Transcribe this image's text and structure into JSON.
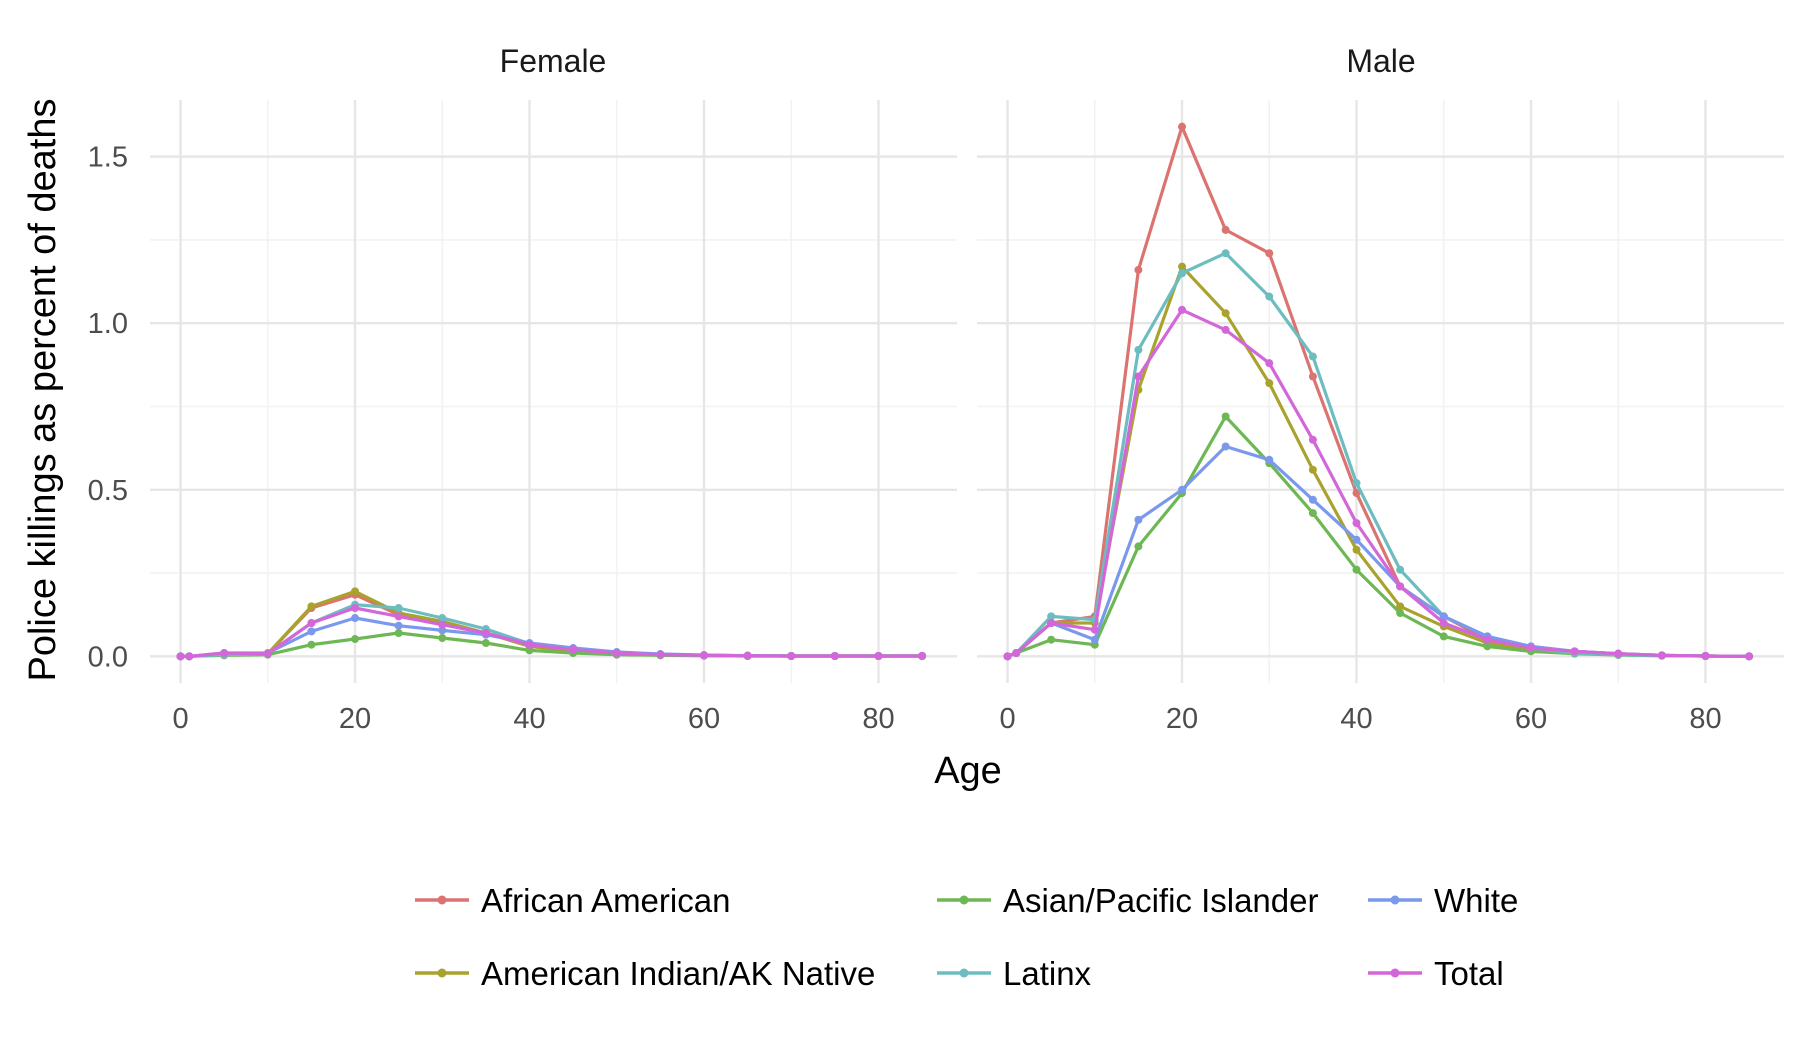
{
  "chart_data": {
    "type": "line",
    "xlabel": "Age",
    "ylabel": "Police killings as percent of deaths",
    "xlim": [
      -3.5,
      89
    ],
    "ylim": [
      -0.08,
      1.67
    ],
    "x_ticks": [
      0,
      20,
      40,
      60,
      80
    ],
    "y_ticks": [
      0.0,
      0.5,
      1.0,
      1.5
    ],
    "y_tick_labels": [
      "0.0",
      "0.5",
      "1.0",
      "1.5"
    ],
    "x": [
      0,
      1,
      5,
      10,
      15,
      20,
      25,
      30,
      35,
      40,
      45,
      50,
      55,
      60,
      65,
      70,
      75,
      80,
      85
    ],
    "grid": true,
    "legend_position": "bottom",
    "panels": [
      {
        "title": "Female",
        "series": [
          {
            "name": "African American",
            "color": "#DB7370",
            "values": [
              0.0,
              0.0,
              0.005,
              0.008,
              0.145,
              0.185,
              0.125,
              0.1,
              0.07,
              0.035,
              0.02,
              0.01,
              0.005,
              0.003,
              0.002,
              0.001,
              0.001,
              0.001,
              0.001
            ]
          },
          {
            "name": "American Indian/AK Native",
            "color": "#A9A32E",
            "values": [
              0.0,
              0.0,
              0.005,
              0.008,
              0.15,
              0.195,
              0.13,
              0.105,
              0.07,
              0.03,
              0.015,
              0.008,
              0.004,
              0.002,
              0.001,
              0.001,
              0.001,
              0.001,
              0.001
            ]
          },
          {
            "name": "Asian/Pacific Islander",
            "color": "#6DB754",
            "values": [
              0.0,
              0.0,
              0.003,
              0.005,
              0.035,
              0.052,
              0.07,
              0.055,
              0.04,
              0.018,
              0.01,
              0.005,
              0.003,
              0.002,
              0.001,
              0.001,
              0.001,
              0.001,
              0.001
            ]
          },
          {
            "name": "Latinx",
            "color": "#6DBDC0",
            "values": [
              0.0,
              0.0,
              0.005,
              0.008,
              0.1,
              0.155,
              0.145,
              0.115,
              0.082,
              0.038,
              0.02,
              0.01,
              0.005,
              0.003,
              0.002,
              0.001,
              0.001,
              0.001,
              0.001
            ]
          },
          {
            "name": "White",
            "color": "#7A99EC",
            "values": [
              0.0,
              0.0,
              0.01,
              0.01,
              0.075,
              0.115,
              0.092,
              0.078,
              0.065,
              0.04,
              0.025,
              0.013,
              0.007,
              0.004,
              0.002,
              0.001,
              0.001,
              0.001,
              0.001
            ]
          },
          {
            "name": "Total",
            "color": "#D367D9",
            "values": [
              0.0,
              0.0,
              0.01,
              0.008,
              0.1,
              0.145,
              0.12,
              0.095,
              0.07,
              0.035,
              0.02,
              0.01,
              0.005,
              0.003,
              0.002,
              0.001,
              0.001,
              0.001,
              0.001
            ]
          }
        ]
      },
      {
        "title": "Male",
        "series": [
          {
            "name": "African American",
            "color": "#DB7370",
            "values": [
              0.0,
              0.01,
              0.1,
              0.12,
              1.16,
              1.59,
              1.28,
              1.21,
              0.84,
              0.49,
              0.21,
              0.12,
              0.05,
              0.025,
              0.015,
              0.008,
              0.003,
              0.001,
              0.0
            ]
          },
          {
            "name": "American Indian/AK Native",
            "color": "#A9A32E",
            "values": [
              0.0,
              0.01,
              0.1,
              0.1,
              0.8,
              1.17,
              1.03,
              0.82,
              0.56,
              0.32,
              0.15,
              0.09,
              0.04,
              0.02,
              0.01,
              0.005,
              0.002,
              0.001,
              0.0
            ]
          },
          {
            "name": "Asian/Pacific Islander",
            "color": "#6DB754",
            "values": [
              0.0,
              0.01,
              0.05,
              0.035,
              0.33,
              0.49,
              0.72,
              0.58,
              0.43,
              0.26,
              0.13,
              0.06,
              0.03,
              0.015,
              0.008,
              0.004,
              0.002,
              0.001,
              0.0
            ]
          },
          {
            "name": "Latinx",
            "color": "#6DBDC0",
            "values": [
              0.0,
              0.01,
              0.12,
              0.11,
              0.92,
              1.15,
              1.21,
              1.08,
              0.9,
              0.52,
              0.26,
              0.12,
              0.06,
              0.025,
              0.01,
              0.005,
              0.002,
              0.001,
              0.0
            ]
          },
          {
            "name": "White",
            "color": "#7A99EC",
            "values": [
              0.0,
              0.01,
              0.1,
              0.05,
              0.41,
              0.5,
              0.63,
              0.59,
              0.47,
              0.35,
              0.21,
              0.12,
              0.06,
              0.03,
              0.015,
              0.008,
              0.003,
              0.001,
              0.0
            ]
          },
          {
            "name": "Total",
            "color": "#D367D9",
            "values": [
              0.0,
              0.01,
              0.1,
              0.08,
              0.84,
              1.04,
              0.98,
              0.88,
              0.65,
              0.4,
              0.21,
              0.1,
              0.05,
              0.025,
              0.015,
              0.008,
              0.003,
              0.001,
              0.0
            ]
          }
        ]
      }
    ],
    "legend": [
      {
        "name": "African American",
        "color": "#DB7370"
      },
      {
        "name": "Asian/Pacific Islander",
        "color": "#6DB754"
      },
      {
        "name": "White",
        "color": "#7A99EC"
      },
      {
        "name": "American Indian/AK Native",
        "color": "#A9A32E"
      },
      {
        "name": "Latinx",
        "color": "#6DBDC0"
      },
      {
        "name": "Total",
        "color": "#D367D9"
      }
    ]
  }
}
